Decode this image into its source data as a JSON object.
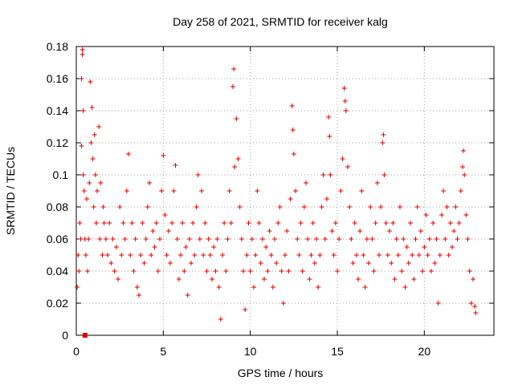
{
  "chart_data": {
    "type": "scatter",
    "title": "Day 258 of 2021, SRMTID for receiver kalg",
    "xlabel": "GPS time / hours",
    "ylabel": "SRMTID / TECUs",
    "xlim": [
      0,
      24
    ],
    "ylim": [
      0,
      0.18
    ],
    "xticks": [
      0,
      5,
      10,
      15,
      20
    ],
    "xtick_labels": [
      "0",
      "5",
      "10",
      "15",
      "20"
    ],
    "yticks": [
      0,
      0.02,
      0.04,
      0.06,
      0.08,
      0.1,
      0.12,
      0.14,
      0.16,
      0.18
    ],
    "ytick_labels": [
      "0",
      "0.02",
      "0.04",
      "0.06",
      "0.08",
      "0.1",
      "0.12",
      "0.14",
      "0.16",
      "0.18"
    ],
    "grid": true,
    "marker": "plus",
    "color": "#e00000",
    "special_point": {
      "x": 0.5,
      "y": 0.0,
      "marker": "square"
    },
    "series": [
      {
        "name": "SRMTID",
        "points": [
          [
            0.05,
            0.03
          ],
          [
            0.1,
            0.05
          ],
          [
            0.15,
            0.04
          ],
          [
            0.2,
            0.07
          ],
          [
            0.25,
            0.06
          ],
          [
            0.3,
            0.118
          ],
          [
            0.3,
            0.16
          ],
          [
            0.35,
            0.175
          ],
          [
            0.35,
            0.178
          ],
          [
            0.4,
            0.14
          ],
          [
            0.4,
            0.1
          ],
          [
            0.45,
            0.09
          ],
          [
            0.5,
            0.06
          ],
          [
            0.55,
            0.05
          ],
          [
            0.6,
            0.085
          ],
          [
            0.65,
            0.04
          ],
          [
            0.7,
            0.06
          ],
          [
            0.75,
            0.095
          ],
          [
            0.8,
            0.158
          ],
          [
            0.85,
            0.12
          ],
          [
            0.9,
            0.142
          ],
          [
            0.95,
            0.11
          ],
          [
            1.0,
            0.08
          ],
          [
            1.05,
            0.125
          ],
          [
            1.1,
            0.1
          ],
          [
            1.15,
            0.07
          ],
          [
            1.2,
            0.09
          ],
          [
            1.3,
            0.13
          ],
          [
            1.35,
            0.06
          ],
          [
            1.4,
            0.095
          ],
          [
            1.5,
            0.05
          ],
          [
            1.55,
            0.08
          ],
          [
            1.6,
            0.07
          ],
          [
            1.7,
            0.06
          ],
          [
            1.8,
            0.05
          ],
          [
            1.9,
            0.07
          ],
          [
            2.0,
            0.045
          ],
          [
            2.1,
            0.06
          ],
          [
            2.2,
            0.04
          ],
          [
            2.3,
            0.055
          ],
          [
            2.4,
            0.035
          ],
          [
            2.5,
            0.08
          ],
          [
            2.6,
            0.05
          ],
          [
            2.7,
            0.07
          ],
          [
            2.8,
            0.06
          ],
          [
            2.9,
            0.09
          ],
          [
            3.0,
            0.113
          ],
          [
            3.1,
            0.05
          ],
          [
            3.2,
            0.07
          ],
          [
            3.3,
            0.04
          ],
          [
            3.4,
            0.06
          ],
          [
            3.5,
            0.03
          ],
          [
            3.6,
            0.025
          ],
          [
            3.7,
            0.05
          ],
          [
            3.8,
            0.07
          ],
          [
            3.9,
            0.045
          ],
          [
            4.0,
            0.06
          ],
          [
            4.1,
            0.08
          ],
          [
            4.2,
            0.095
          ],
          [
            4.3,
            0.05
          ],
          [
            4.4,
            0.065
          ],
          [
            4.5,
            0.055
          ],
          [
            4.6,
            0.07
          ],
          [
            4.7,
            0.04
          ],
          [
            4.8,
            0.06
          ],
          [
            4.9,
            0.09
          ],
          [
            5.0,
            0.112
          ],
          [
            5.1,
            0.075
          ],
          [
            5.2,
            0.05
          ],
          [
            5.3,
            0.065
          ],
          [
            5.4,
            0.045
          ],
          [
            5.5,
            0.07
          ],
          [
            5.6,
            0.09
          ],
          [
            5.7,
            0.106
          ],
          [
            5.8,
            0.06
          ],
          [
            5.9,
            0.035
          ],
          [
            6.0,
            0.05
          ],
          [
            6.1,
            0.07
          ],
          [
            6.2,
            0.04
          ],
          [
            6.3,
            0.055
          ],
          [
            6.4,
            0.025
          ],
          [
            6.5,
            0.06
          ],
          [
            6.6,
            0.045
          ],
          [
            6.7,
            0.07
          ],
          [
            6.8,
            0.05
          ],
          [
            6.9,
            0.08
          ],
          [
            7.0,
            0.1
          ],
          [
            7.1,
            0.06
          ],
          [
            7.2,
            0.09
          ],
          [
            7.3,
            0.05
          ],
          [
            7.4,
            0.07
          ],
          [
            7.5,
            0.04
          ],
          [
            7.6,
            0.06
          ],
          [
            7.7,
            0.05
          ],
          [
            7.8,
            0.035
          ],
          [
            7.9,
            0.055
          ],
          [
            8.0,
            0.04
          ],
          [
            8.1,
            0.06
          ],
          [
            8.2,
            0.03
          ],
          [
            8.3,
            0.01
          ],
          [
            8.4,
            0.05
          ],
          [
            8.5,
            0.07
          ],
          [
            8.6,
            0.04
          ],
          [
            8.7,
            0.06
          ],
          [
            8.8,
            0.09
          ],
          [
            8.9,
            0.07
          ],
          [
            9.0,
            0.155
          ],
          [
            9.05,
            0.166
          ],
          [
            9.1,
            0.105
          ],
          [
            9.2,
            0.135
          ],
          [
            9.3,
            0.11
          ],
          [
            9.4,
            0.08
          ],
          [
            9.5,
            0.06
          ],
          [
            9.6,
            0.04
          ],
          [
            9.7,
            0.016
          ],
          [
            9.8,
            0.05
          ],
          [
            9.9,
            0.07
          ],
          [
            10.0,
            0.04
          ],
          [
            10.1,
            0.06
          ],
          [
            10.2,
            0.03
          ],
          [
            10.3,
            0.05
          ],
          [
            10.4,
            0.09
          ],
          [
            10.5,
            0.07
          ],
          [
            10.6,
            0.045
          ],
          [
            10.7,
            0.06
          ],
          [
            10.8,
            0.035
          ],
          [
            10.9,
            0.055
          ],
          [
            11.0,
            0.04
          ],
          [
            11.1,
            0.065
          ],
          [
            11.2,
            0.05
          ],
          [
            11.3,
            0.03
          ],
          [
            11.4,
            0.06
          ],
          [
            11.5,
            0.045
          ],
          [
            11.6,
            0.07
          ],
          [
            11.7,
            0.08
          ],
          [
            11.8,
            0.04
          ],
          [
            11.9,
            0.02
          ],
          [
            12.0,
            0.05
          ],
          [
            12.1,
            0.065
          ],
          [
            12.2,
            0.04
          ],
          [
            12.3,
            0.085
          ],
          [
            12.4,
            0.143
          ],
          [
            12.45,
            0.128
          ],
          [
            12.5,
            0.113
          ],
          [
            12.6,
            0.09
          ],
          [
            12.7,
            0.06
          ],
          [
            12.8,
            0.05
          ],
          [
            12.9,
            0.07
          ],
          [
            13.0,
            0.04
          ],
          [
            13.1,
            0.08
          ],
          [
            13.2,
            0.095
          ],
          [
            13.3,
            0.06
          ],
          [
            13.4,
            0.035
          ],
          [
            13.5,
            0.05
          ],
          [
            13.6,
            0.07
          ],
          [
            13.7,
            0.045
          ],
          [
            13.8,
            0.06
          ],
          [
            13.9,
            0.03
          ],
          [
            14.0,
            0.05
          ],
          [
            14.1,
            0.08
          ],
          [
            14.2,
            0.1
          ],
          [
            14.3,
            0.06
          ],
          [
            14.4,
            0.085
          ],
          [
            14.5,
            0.136
          ],
          [
            14.55,
            0.124
          ],
          [
            14.6,
            0.1
          ],
          [
            14.7,
            0.065
          ],
          [
            14.8,
            0.05
          ],
          [
            14.9,
            0.07
          ],
          [
            15.0,
            0.04
          ],
          [
            15.1,
            0.06
          ],
          [
            15.2,
            0.09
          ],
          [
            15.3,
            0.11
          ],
          [
            15.4,
            0.154
          ],
          [
            15.45,
            0.146
          ],
          [
            15.5,
            0.14
          ],
          [
            15.6,
            0.105
          ],
          [
            15.7,
            0.08
          ],
          [
            15.8,
            0.06
          ],
          [
            15.9,
            0.045
          ],
          [
            16.0,
            0.07
          ],
          [
            16.1,
            0.05
          ],
          [
            16.2,
            0.035
          ],
          [
            16.3,
            0.065
          ],
          [
            16.4,
            0.09
          ],
          [
            16.5,
            0.05
          ],
          [
            16.6,
            0.03
          ],
          [
            16.7,
            0.06
          ],
          [
            16.8,
            0.045
          ],
          [
            16.9,
            0.08
          ],
          [
            17.0,
            0.06
          ],
          [
            17.1,
            0.04
          ],
          [
            17.2,
            0.07
          ],
          [
            17.3,
            0.095
          ],
          [
            17.4,
            0.05
          ],
          [
            17.5,
            0.08
          ],
          [
            17.6,
            0.12
          ],
          [
            17.65,
            0.125
          ],
          [
            17.7,
            0.1
          ],
          [
            17.8,
            0.07
          ],
          [
            17.9,
            0.05
          ],
          [
            18.0,
            0.065
          ],
          [
            18.1,
            0.045
          ],
          [
            18.2,
            0.07
          ],
          [
            18.3,
            0.035
          ],
          [
            18.4,
            0.06
          ],
          [
            18.5,
            0.05
          ],
          [
            18.6,
            0.08
          ],
          [
            18.7,
            0.04
          ],
          [
            18.8,
            0.06
          ],
          [
            18.9,
            0.03
          ],
          [
            19.0,
            0.055
          ],
          [
            19.1,
            0.045
          ],
          [
            19.2,
            0.07
          ],
          [
            19.3,
            0.05
          ],
          [
            19.4,
            0.035
          ],
          [
            19.5,
            0.06
          ],
          [
            19.6,
            0.08
          ],
          [
            19.7,
            0.05
          ],
          [
            19.8,
            0.065
          ],
          [
            19.9,
            0.04
          ],
          [
            20.0,
            0.055
          ],
          [
            20.1,
            0.075
          ],
          [
            20.2,
            0.05
          ],
          [
            20.3,
            0.06
          ],
          [
            20.4,
            0.04
          ],
          [
            20.5,
            0.07
          ],
          [
            20.6,
            0.045
          ],
          [
            20.7,
            0.06
          ],
          [
            20.8,
            0.02
          ],
          [
            20.9,
            0.05
          ],
          [
            21.0,
            0.075
          ],
          [
            21.1,
            0.09
          ],
          [
            21.2,
            0.06
          ],
          [
            21.3,
            0.08
          ],
          [
            21.4,
            0.05
          ],
          [
            21.5,
            0.07
          ],
          [
            21.6,
            0.055
          ],
          [
            21.7,
            0.065
          ],
          [
            21.8,
            0.08
          ],
          [
            21.9,
            0.06
          ],
          [
            22.0,
            0.07
          ],
          [
            22.1,
            0.09
          ],
          [
            22.2,
            0.105
          ],
          [
            22.25,
            0.115
          ],
          [
            22.3,
            0.1
          ],
          [
            22.4,
            0.075
          ],
          [
            22.5,
            0.06
          ],
          [
            22.6,
            0.04
          ],
          [
            22.7,
            0.02
          ],
          [
            22.8,
            0.035
          ],
          [
            22.9,
            0.018
          ],
          [
            22.95,
            0.014
          ]
        ]
      }
    ]
  }
}
